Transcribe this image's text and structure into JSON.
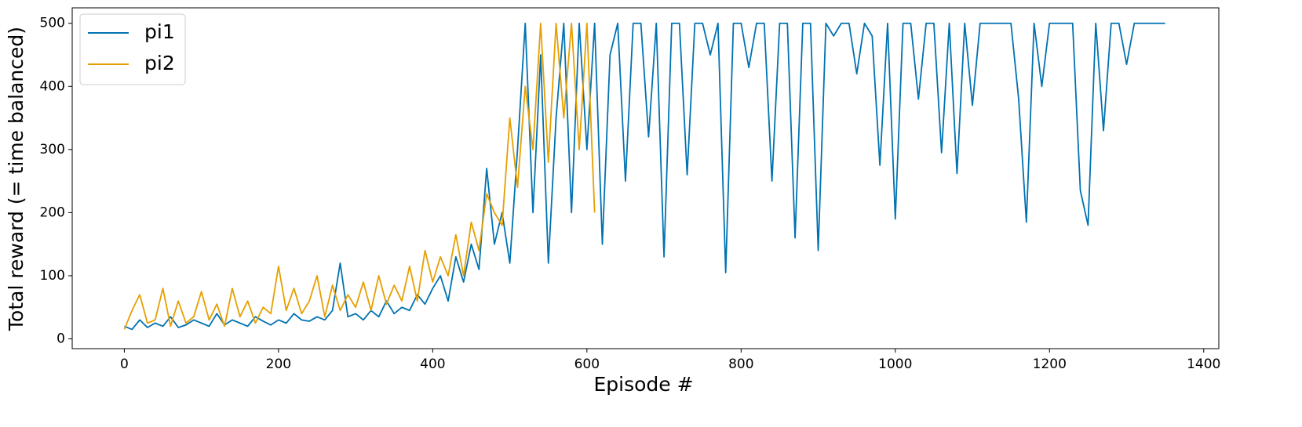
{
  "chart_data": {
    "type": "line",
    "xlabel": "Episode #",
    "ylabel": "Total reward (= time balanced)",
    "xlim": [
      -67.6,
      1419.6
    ],
    "ylim": [
      -15.5,
      524.5
    ],
    "xticks": [
      0,
      200,
      400,
      600,
      800,
      1000,
      1200,
      1400
    ],
    "yticks": [
      0,
      100,
      200,
      300,
      400,
      500
    ],
    "grid": false,
    "legend": "upper left",
    "series": [
      {
        "name": "pi1",
        "color": "#0072B2",
        "x": [
          0,
          10,
          20,
          30,
          40,
          50,
          60,
          70,
          80,
          90,
          100,
          110,
          120,
          130,
          140,
          150,
          160,
          170,
          180,
          190,
          200,
          210,
          220,
          230,
          240,
          250,
          260,
          270,
          280,
          290,
          300,
          310,
          320,
          330,
          340,
          350,
          360,
          370,
          380,
          390,
          400,
          410,
          420,
          430,
          440,
          450,
          460,
          470,
          480,
          490,
          500,
          510,
          520,
          530,
          540,
          550,
          560,
          570,
          580,
          590,
          600,
          610,
          620,
          630,
          640,
          650,
          660,
          670,
          680,
          690,
          700,
          710,
          720,
          730,
          740,
          750,
          760,
          770,
          780,
          790,
          800,
          810,
          820,
          830,
          840,
          850,
          860,
          870,
          880,
          890,
          900,
          910,
          920,
          930,
          940,
          950,
          960,
          970,
          980,
          990,
          1000,
          1010,
          1020,
          1030,
          1040,
          1050,
          1060,
          1070,
          1080,
          1090,
          1100,
          1110,
          1120,
          1130,
          1140,
          1150,
          1160,
          1170,
          1180,
          1190,
          1200,
          1210,
          1220,
          1230,
          1240,
          1250,
          1260,
          1270,
          1280,
          1290,
          1300,
          1310,
          1320,
          1330,
          1340,
          1350
        ],
        "values": [
          20,
          15,
          30,
          18,
          25,
          20,
          35,
          18,
          22,
          30,
          25,
          20,
          40,
          22,
          30,
          25,
          20,
          35,
          28,
          22,
          30,
          25,
          40,
          30,
          28,
          35,
          30,
          45,
          120,
          35,
          40,
          30,
          45,
          35,
          60,
          40,
          50,
          45,
          70,
          55,
          80,
          100,
          60,
          130,
          90,
          150,
          110,
          270,
          150,
          200,
          120,
          300,
          500,
          200,
          450,
          120,
          350,
          500,
          200,
          500,
          300,
          500,
          150,
          450,
          500,
          250,
          500,
          500,
          320,
          500,
          130,
          500,
          500,
          260,
          500,
          500,
          450,
          500,
          105,
          500,
          500,
          430,
          500,
          500,
          250,
          500,
          500,
          160,
          500,
          500,
          140,
          500,
          480,
          500,
          500,
          420,
          500,
          480,
          275,
          500,
          190,
          500,
          500,
          380,
          500,
          500,
          295,
          500,
          262,
          500,
          370,
          500,
          500,
          500,
          500,
          500,
          380,
          185,
          500,
          400,
          500,
          500,
          500,
          500,
          235,
          180,
          500,
          330,
          500,
          500,
          435,
          500,
          500,
          500,
          500,
          500
        ]
      },
      {
        "name": "pi2",
        "color": "#E69F00",
        "x": [
          0,
          10,
          20,
          30,
          40,
          50,
          60,
          70,
          80,
          90,
          100,
          110,
          120,
          130,
          140,
          150,
          160,
          170,
          180,
          190,
          200,
          210,
          220,
          230,
          240,
          250,
          260,
          270,
          280,
          290,
          300,
          310,
          320,
          330,
          340,
          350,
          360,
          370,
          380,
          390,
          400,
          410,
          420,
          430,
          440,
          450,
          460,
          470,
          480,
          490,
          500,
          510,
          520,
          530,
          540,
          550,
          560,
          570,
          580,
          590,
          600,
          610
        ],
        "values": [
          15,
          45,
          70,
          25,
          30,
          80,
          20,
          60,
          25,
          35,
          75,
          30,
          55,
          20,
          80,
          35,
          60,
          25,
          50,
          40,
          115,
          45,
          80,
          40,
          60,
          100,
          35,
          85,
          45,
          70,
          50,
          90,
          45,
          100,
          55,
          85,
          60,
          115,
          60,
          140,
          90,
          130,
          100,
          165,
          100,
          185,
          140,
          230,
          200,
          180,
          350,
          240,
          400,
          300,
          500,
          280,
          500,
          350,
          500,
          300,
          500,
          200
        ]
      }
    ]
  }
}
